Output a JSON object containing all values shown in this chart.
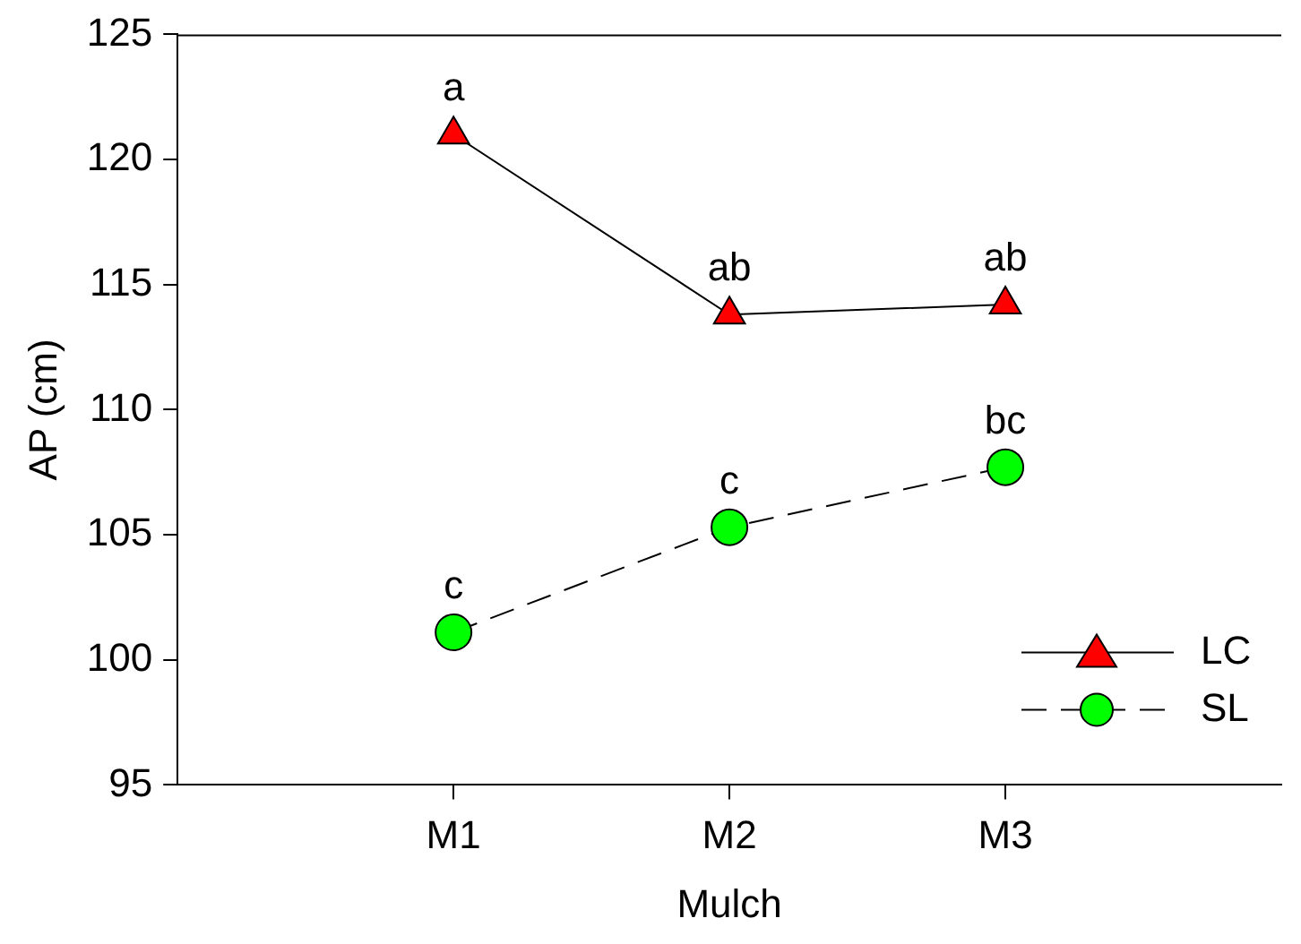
{
  "chart_data": {
    "type": "line",
    "xlabel": "Mulch",
    "ylabel": "AP (cm)",
    "categories": [
      "M1",
      "M2",
      "M3"
    ],
    "series": [
      {
        "name": "LC",
        "color": "#ff0000",
        "values": [
          121.0,
          113.8,
          114.2
        ],
        "marker": "triangle",
        "line_style": "solid"
      },
      {
        "name": "SL",
        "color": "#00ff00",
        "values": [
          101.1,
          105.3,
          107.7
        ],
        "marker": "circle",
        "line_style": "dashed"
      }
    ],
    "ylim": [
      95,
      125
    ],
    "yticks": [
      95,
      100,
      105,
      110,
      115,
      120,
      125
    ],
    "grid": false,
    "legend": "bottom right",
    "annotations": [
      {
        "text": "a",
        "x": "M1",
        "y": 121.0
      },
      {
        "text": "ab",
        "x": "M2",
        "y": 113.8
      },
      {
        "text": "ab",
        "x": "M3",
        "y": 114.2
      },
      {
        "text": "c",
        "x": "M1",
        "y": 101.1
      },
      {
        "text": "c",
        "x": "M2",
        "y": 105.3
      },
      {
        "text": "bc",
        "x": "M3",
        "y": 107.7
      }
    ]
  }
}
